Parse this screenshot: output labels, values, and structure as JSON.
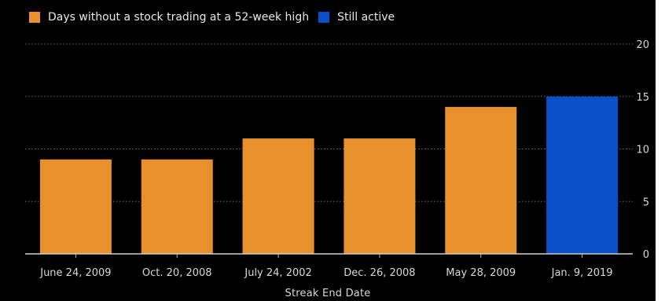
{
  "chart_data": {
    "type": "bar",
    "categories": [
      "June 24, 2009",
      "Oct. 20, 2008",
      "July 24, 2002",
      "Dec. 26, 2008",
      "May 28, 2009",
      "Jan. 9, 2019"
    ],
    "values": [
      9,
      9,
      11,
      11,
      14,
      15
    ],
    "status": [
      "past",
      "past",
      "past",
      "past",
      "past",
      "active"
    ],
    "legend": [
      {
        "label": "Days without a stock trading at a 52-week high",
        "color": "#e8912c"
      },
      {
        "label": "Still active",
        "color": "#0a4fc8"
      }
    ],
    "title": "",
    "xlabel": "Streak End Date",
    "ylabel": "",
    "ylim": [
      0,
      20
    ],
    "yticks": [
      0,
      5,
      10,
      15,
      20
    ],
    "y_axis_side": "right",
    "grid": true,
    "legend_position": "top-left",
    "colors": {
      "background": "#000000",
      "past": "#e8912c",
      "active": "#0a4fc8",
      "grid": "#6a6a6a",
      "text": "#d8d8d8"
    }
  }
}
